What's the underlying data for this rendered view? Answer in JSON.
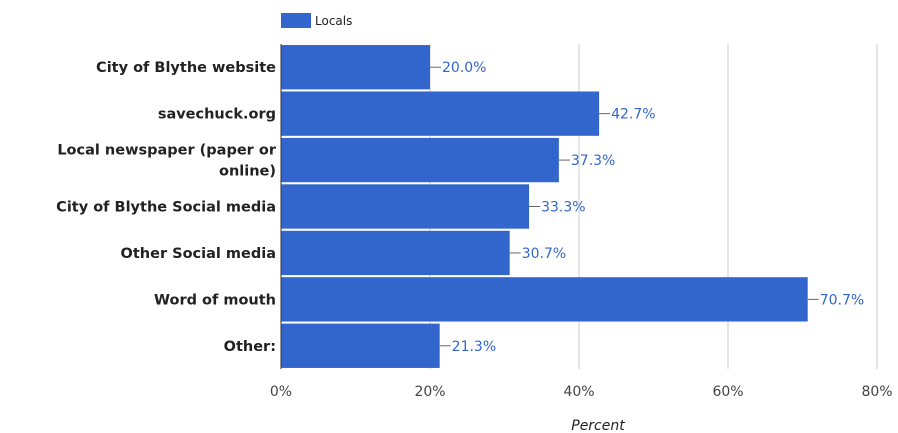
{
  "chart_data": {
    "type": "bar",
    "orientation": "horizontal",
    "categories": [
      [
        "City of Blythe website"
      ],
      [
        "savechuck.org"
      ],
      [
        "Local newspaper (paper or",
        "online)"
      ],
      [
        "City of Blythe Social media"
      ],
      [
        "Other Social media"
      ],
      [
        "Word of mouth"
      ],
      [
        "Other:"
      ]
    ],
    "series": [
      {
        "name": "Locals",
        "color": "#3366cc",
        "values": [
          20.0,
          42.7,
          37.3,
          33.3,
          30.7,
          70.7,
          21.3
        ],
        "labels": [
          "20.0%",
          "42.7%",
          "37.3%",
          "33.3%",
          "30.7%",
          "70.7%",
          "21.3%"
        ]
      }
    ],
    "xlabel": "Percent",
    "xlim": [
      0,
      80
    ],
    "xticks": [
      0,
      20,
      40,
      60,
      80
    ],
    "xtick_labels": [
      "0%",
      "20%",
      "40%",
      "60%",
      "80%"
    ],
    "grid": true,
    "legend_position": "top-left"
  }
}
